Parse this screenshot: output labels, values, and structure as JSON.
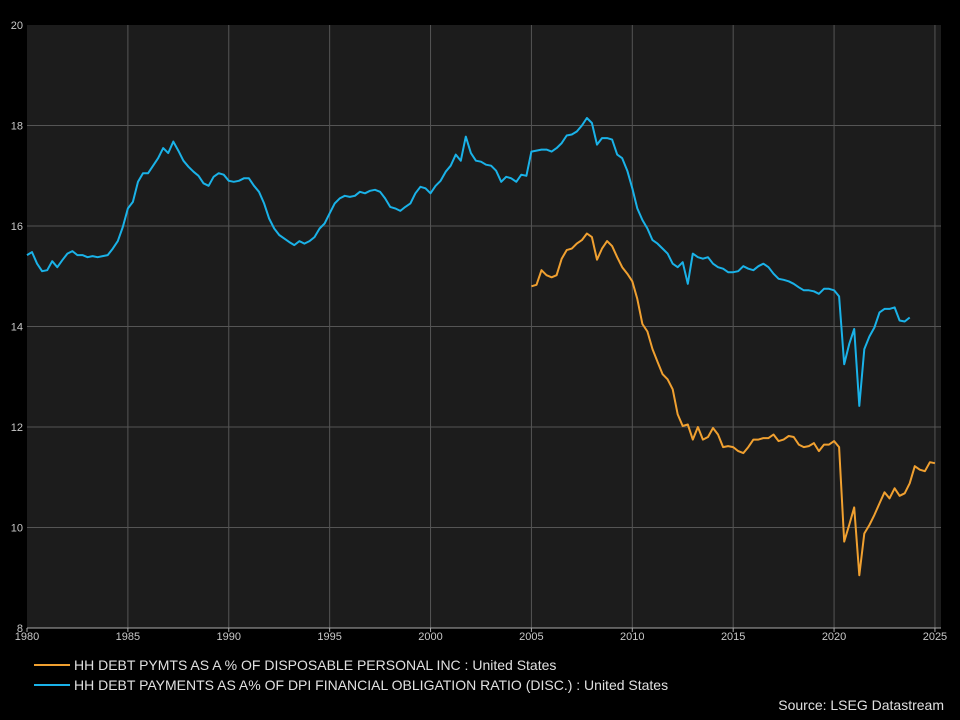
{
  "chart_data": {
    "type": "line",
    "title": "",
    "xlabel": "",
    "ylabel": "",
    "xlim": [
      1980,
      2025.3
    ],
    "ylim": [
      8,
      20
    ],
    "x_ticks": [
      "1980",
      "1985",
      "1990",
      "1995",
      "2000",
      "2005",
      "2010",
      "2015",
      "2020",
      "2025"
    ],
    "y_ticks": [
      "8",
      "10",
      "12",
      "14",
      "16",
      "18",
      "20"
    ],
    "grid": true,
    "legend_position": "bottom-left",
    "background_color": "#1c1c1c",
    "series": [
      {
        "name": "HH DEBT PYMTS AS A % OF DISPOSABLE PERSONAL INC : United States",
        "color": "#f0a030",
        "points": [
          [
            2005.0,
            14.8
          ],
          [
            2005.25,
            14.83
          ],
          [
            2005.5,
            15.12
          ],
          [
            2005.75,
            15.02
          ],
          [
            2006.0,
            14.98
          ],
          [
            2006.25,
            15.02
          ],
          [
            2006.5,
            15.35
          ],
          [
            2006.75,
            15.52
          ],
          [
            2007.0,
            15.55
          ],
          [
            2007.25,
            15.65
          ],
          [
            2007.5,
            15.72
          ],
          [
            2007.75,
            15.85
          ],
          [
            2008.0,
            15.78
          ],
          [
            2008.25,
            15.33
          ],
          [
            2008.5,
            15.55
          ],
          [
            2008.75,
            15.7
          ],
          [
            2009.0,
            15.6
          ],
          [
            2009.25,
            15.38
          ],
          [
            2009.5,
            15.18
          ],
          [
            2009.75,
            15.05
          ],
          [
            2010.0,
            14.9
          ],
          [
            2010.25,
            14.55
          ],
          [
            2010.5,
            14.05
          ],
          [
            2010.75,
            13.9
          ],
          [
            2011.0,
            13.55
          ],
          [
            2011.25,
            13.3
          ],
          [
            2011.5,
            13.05
          ],
          [
            2011.75,
            12.95
          ],
          [
            2012.0,
            12.75
          ],
          [
            2012.25,
            12.25
          ],
          [
            2012.5,
            12.02
          ],
          [
            2012.75,
            12.05
          ],
          [
            2013.0,
            11.75
          ],
          [
            2013.25,
            12.0
          ],
          [
            2013.5,
            11.75
          ],
          [
            2013.75,
            11.8
          ],
          [
            2014.0,
            11.98
          ],
          [
            2014.25,
            11.85
          ],
          [
            2014.5,
            11.6
          ],
          [
            2014.75,
            11.62
          ],
          [
            2015.0,
            11.6
          ],
          [
            2015.25,
            11.52
          ],
          [
            2015.5,
            11.48
          ],
          [
            2015.75,
            11.6
          ],
          [
            2016.0,
            11.75
          ],
          [
            2016.25,
            11.75
          ],
          [
            2016.5,
            11.78
          ],
          [
            2016.75,
            11.78
          ],
          [
            2017.0,
            11.85
          ],
          [
            2017.25,
            11.72
          ],
          [
            2017.5,
            11.75
          ],
          [
            2017.75,
            11.82
          ],
          [
            2018.0,
            11.8
          ],
          [
            2018.25,
            11.65
          ],
          [
            2018.5,
            11.6
          ],
          [
            2018.75,
            11.62
          ],
          [
            2019.0,
            11.68
          ],
          [
            2019.25,
            11.52
          ],
          [
            2019.5,
            11.65
          ],
          [
            2019.75,
            11.65
          ],
          [
            2020.0,
            11.72
          ],
          [
            2020.25,
            11.6
          ],
          [
            2020.5,
            9.72
          ],
          [
            2020.75,
            10.05
          ],
          [
            2021.0,
            10.4
          ],
          [
            2021.25,
            9.05
          ],
          [
            2021.5,
            9.88
          ],
          [
            2021.75,
            10.05
          ],
          [
            2022.0,
            10.25
          ],
          [
            2022.25,
            10.48
          ],
          [
            2022.5,
            10.7
          ],
          [
            2022.75,
            10.58
          ],
          [
            2023.0,
            10.78
          ],
          [
            2023.25,
            10.63
          ],
          [
            2023.5,
            10.68
          ],
          [
            2023.75,
            10.88
          ],
          [
            2024.0,
            11.22
          ],
          [
            2024.25,
            11.15
          ],
          [
            2024.5,
            11.12
          ],
          [
            2024.75,
            11.3
          ],
          [
            2025.0,
            11.28
          ]
        ]
      },
      {
        "name": "HH DEBT PAYMENTS AS A% OF DPI FINANCIAL OBLIGATION RATIO (DISC.) : United States",
        "color": "#1ab2e8",
        "points": [
          [
            1980.0,
            15.42
          ],
          [
            1980.25,
            15.48
          ],
          [
            1980.5,
            15.25
          ],
          [
            1980.75,
            15.1
          ],
          [
            1981.0,
            15.12
          ],
          [
            1981.25,
            15.3
          ],
          [
            1981.5,
            15.18
          ],
          [
            1981.75,
            15.32
          ],
          [
            1982.0,
            15.45
          ],
          [
            1982.25,
            15.5
          ],
          [
            1982.5,
            15.42
          ],
          [
            1982.75,
            15.42
          ],
          [
            1983.0,
            15.38
          ],
          [
            1983.25,
            15.4
          ],
          [
            1983.5,
            15.38
          ],
          [
            1983.75,
            15.4
          ],
          [
            1984.0,
            15.42
          ],
          [
            1984.25,
            15.55
          ],
          [
            1984.5,
            15.7
          ],
          [
            1984.75,
            15.98
          ],
          [
            1985.0,
            16.35
          ],
          [
            1985.25,
            16.48
          ],
          [
            1985.5,
            16.88
          ],
          [
            1985.75,
            17.05
          ],
          [
            1986.0,
            17.05
          ],
          [
            1986.25,
            17.2
          ],
          [
            1986.5,
            17.35
          ],
          [
            1986.75,
            17.55
          ],
          [
            1987.0,
            17.45
          ],
          [
            1987.25,
            17.68
          ],
          [
            1987.5,
            17.5
          ],
          [
            1987.75,
            17.3
          ],
          [
            1988.0,
            17.18
          ],
          [
            1988.25,
            17.08
          ],
          [
            1988.5,
            17.0
          ],
          [
            1988.75,
            16.85
          ],
          [
            1989.0,
            16.8
          ],
          [
            1989.25,
            16.98
          ],
          [
            1989.5,
            17.05
          ],
          [
            1989.75,
            17.02
          ],
          [
            1990.0,
            16.9
          ],
          [
            1990.25,
            16.88
          ],
          [
            1990.5,
            16.9
          ],
          [
            1990.75,
            16.95
          ],
          [
            1991.0,
            16.95
          ],
          [
            1991.25,
            16.8
          ],
          [
            1991.5,
            16.68
          ],
          [
            1991.75,
            16.45
          ],
          [
            1992.0,
            16.15
          ],
          [
            1992.25,
            15.95
          ],
          [
            1992.5,
            15.82
          ],
          [
            1992.75,
            15.75
          ],
          [
            1993.0,
            15.68
          ],
          [
            1993.25,
            15.62
          ],
          [
            1993.5,
            15.7
          ],
          [
            1993.75,
            15.65
          ],
          [
            1994.0,
            15.7
          ],
          [
            1994.25,
            15.78
          ],
          [
            1994.5,
            15.95
          ],
          [
            1994.75,
            16.05
          ],
          [
            1995.0,
            16.25
          ],
          [
            1995.25,
            16.45
          ],
          [
            1995.5,
            16.55
          ],
          [
            1995.75,
            16.6
          ],
          [
            1996.0,
            16.58
          ],
          [
            1996.25,
            16.6
          ],
          [
            1996.5,
            16.68
          ],
          [
            1996.75,
            16.65
          ],
          [
            1997.0,
            16.7
          ],
          [
            1997.25,
            16.72
          ],
          [
            1997.5,
            16.68
          ],
          [
            1997.75,
            16.55
          ],
          [
            1998.0,
            16.38
          ],
          [
            1998.25,
            16.35
          ],
          [
            1998.5,
            16.3
          ],
          [
            1998.75,
            16.38
          ],
          [
            1999.0,
            16.45
          ],
          [
            1999.25,
            16.65
          ],
          [
            1999.5,
            16.78
          ],
          [
            1999.75,
            16.75
          ],
          [
            2000.0,
            16.65
          ],
          [
            2000.25,
            16.8
          ],
          [
            2000.5,
            16.9
          ],
          [
            2000.75,
            17.08
          ],
          [
            2001.0,
            17.2
          ],
          [
            2001.25,
            17.42
          ],
          [
            2001.5,
            17.3
          ],
          [
            2001.75,
            17.78
          ],
          [
            2002.0,
            17.45
          ],
          [
            2002.25,
            17.3
          ],
          [
            2002.5,
            17.28
          ],
          [
            2002.75,
            17.22
          ],
          [
            2003.0,
            17.2
          ],
          [
            2003.25,
            17.1
          ],
          [
            2003.5,
            16.88
          ],
          [
            2003.75,
            16.98
          ],
          [
            2004.0,
            16.95
          ],
          [
            2004.25,
            16.88
          ],
          [
            2004.5,
            17.02
          ],
          [
            2004.75,
            17.0
          ],
          [
            2005.0,
            17.48
          ],
          [
            2005.25,
            17.5
          ],
          [
            2005.5,
            17.52
          ],
          [
            2005.75,
            17.52
          ],
          [
            2006.0,
            17.48
          ],
          [
            2006.25,
            17.55
          ],
          [
            2006.5,
            17.65
          ],
          [
            2006.75,
            17.8
          ],
          [
            2007.0,
            17.82
          ],
          [
            2007.25,
            17.88
          ],
          [
            2007.5,
            18.0
          ],
          [
            2007.75,
            18.15
          ],
          [
            2008.0,
            18.05
          ],
          [
            2008.25,
            17.62
          ],
          [
            2008.5,
            17.75
          ],
          [
            2008.75,
            17.75
          ],
          [
            2009.0,
            17.72
          ],
          [
            2009.25,
            17.42
          ],
          [
            2009.5,
            17.35
          ],
          [
            2009.75,
            17.1
          ],
          [
            2010.0,
            16.75
          ],
          [
            2010.25,
            16.35
          ],
          [
            2010.5,
            16.12
          ],
          [
            2010.75,
            15.95
          ],
          [
            2011.0,
            15.72
          ],
          [
            2011.25,
            15.65
          ],
          [
            2011.5,
            15.55
          ],
          [
            2011.75,
            15.45
          ],
          [
            2012.0,
            15.25
          ],
          [
            2012.25,
            15.18
          ],
          [
            2012.5,
            15.28
          ],
          [
            2012.75,
            14.85
          ],
          [
            2013.0,
            15.45
          ],
          [
            2013.25,
            15.38
          ],
          [
            2013.5,
            15.35
          ],
          [
            2013.75,
            15.38
          ],
          [
            2014.0,
            15.25
          ],
          [
            2014.25,
            15.18
          ],
          [
            2014.5,
            15.15
          ],
          [
            2014.75,
            15.08
          ],
          [
            2015.0,
            15.08
          ],
          [
            2015.25,
            15.1
          ],
          [
            2015.5,
            15.2
          ],
          [
            2015.75,
            15.15
          ],
          [
            2016.0,
            15.12
          ],
          [
            2016.25,
            15.2
          ],
          [
            2016.5,
            15.25
          ],
          [
            2016.75,
            15.18
          ],
          [
            2017.0,
            15.05
          ],
          [
            2017.25,
            14.95
          ],
          [
            2017.5,
            14.93
          ],
          [
            2017.75,
            14.9
          ],
          [
            2018.0,
            14.85
          ],
          [
            2018.25,
            14.78
          ],
          [
            2018.5,
            14.72
          ],
          [
            2018.75,
            14.72
          ],
          [
            2019.0,
            14.7
          ],
          [
            2019.25,
            14.65
          ],
          [
            2019.5,
            14.75
          ],
          [
            2019.75,
            14.75
          ],
          [
            2020.0,
            14.72
          ],
          [
            2020.25,
            14.6
          ],
          [
            2020.5,
            13.25
          ],
          [
            2020.75,
            13.65
          ],
          [
            2021.0,
            13.95
          ],
          [
            2021.25,
            12.42
          ],
          [
            2021.5,
            13.55
          ],
          [
            2021.75,
            13.8
          ],
          [
            2022.0,
            13.98
          ],
          [
            2022.25,
            14.28
          ],
          [
            2022.5,
            14.35
          ],
          [
            2022.75,
            14.35
          ],
          [
            2023.0,
            14.38
          ],
          [
            2023.25,
            14.12
          ],
          [
            2023.5,
            14.1
          ],
          [
            2023.75,
            14.18
          ]
        ]
      }
    ]
  },
  "source": "Source: LSEG Datastream"
}
